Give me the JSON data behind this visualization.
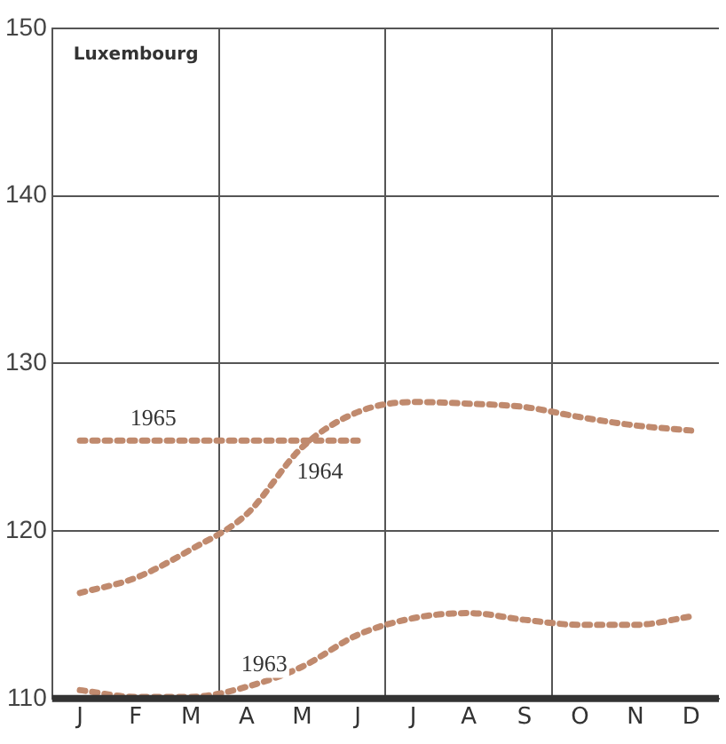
{
  "chart_data": {
    "type": "line",
    "title": "Luxembourg",
    "categories": [
      "J",
      "F",
      "M",
      "A",
      "M",
      "J",
      "J",
      "A",
      "S",
      "O",
      "N",
      "D"
    ],
    "series": [
      {
        "name": "1963",
        "color": "#c08a6e",
        "values": [
          110.5,
          110.1,
          110.1,
          110.7,
          111.9,
          113.8,
          114.8,
          115.1,
          114.7,
          114.4,
          114.4,
          114.9
        ]
      },
      {
        "name": "1964",
        "color": "#c08a6e",
        "values": [
          116.3,
          117.2,
          118.9,
          121,
          125,
          127.1,
          127.7,
          127.6,
          127.4,
          126.8,
          126.3,
          126
        ]
      },
      {
        "name": "1965",
        "color": "#c08a6e",
        "values": [
          125.4,
          125.4,
          125.4,
          125.4,
          125.4,
          125.4,
          null,
          null,
          null,
          null,
          null,
          null
        ]
      }
    ],
    "ylim": [
      110,
      150
    ],
    "yticks": [
      110,
      120,
      130,
      140,
      150
    ],
    "grid": true,
    "legend": false,
    "marker": "none",
    "line_style": "dotted"
  }
}
